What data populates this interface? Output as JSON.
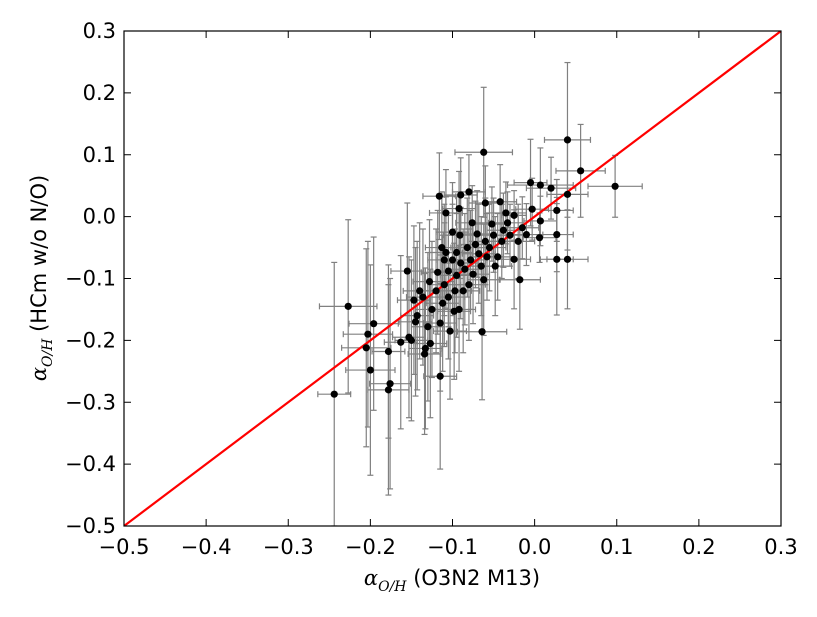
{
  "chart_data": {
    "type": "scatter",
    "xlabel": {
      "math": "α",
      "sub": "O/H",
      "text": " (O3N2 M13)"
    },
    "ylabel": {
      "math": "α",
      "sub": "O/H",
      "text": " (HCm w/o N/O)"
    },
    "xlim": [
      -0.5,
      0.3
    ],
    "ylim": [
      -0.5,
      0.3
    ],
    "xticks": [
      -0.5,
      -0.4,
      -0.3,
      -0.2,
      -0.1,
      0.0,
      0.1,
      0.2,
      0.3
    ],
    "yticks": [
      -0.5,
      -0.4,
      -0.3,
      -0.2,
      -0.1,
      0.0,
      0.1,
      0.2,
      0.3
    ],
    "xtick_labels": [
      "−0.5",
      "−0.4",
      "−0.3",
      "−0.2",
      "−0.1",
      "0.0",
      "0.1",
      "0.2",
      "0.3"
    ],
    "ytick_labels": [
      "−0.5",
      "−0.4",
      "−0.3",
      "−0.2",
      "−0.1",
      "0.0",
      "0.1",
      "0.2",
      "0.3"
    ],
    "grid": false,
    "line": {
      "x": [
        -0.5,
        0.3
      ],
      "y": [
        -0.5,
        0.3
      ],
      "color": "#ff0000"
    },
    "marker_color": "#000000",
    "errorbar_color": "#808080",
    "points": [
      {
        "x": 0.098,
        "y": 0.049,
        "xerr": 0.033,
        "yerr": 0.05
      },
      {
        "x": 0.056,
        "y": 0.074,
        "xerr": 0.03,
        "yerr": 0.075
      },
      {
        "x": 0.04,
        "y": 0.124,
        "xerr": 0.028,
        "yerr": 0.125
      },
      {
        "x": 0.04,
        "y": 0.036,
        "xerr": 0.025,
        "yerr": 0.09
      },
      {
        "x": 0.04,
        "y": -0.069,
        "xerr": 0.025,
        "yerr": 0.08
      },
      {
        "x": 0.027,
        "y": -0.069,
        "xerr": 0.02,
        "yerr": 0.09
      },
      {
        "x": 0.027,
        "y": -0.029,
        "xerr": 0.02,
        "yerr": 0.06
      },
      {
        "x": 0.027,
        "y": 0.01,
        "xerr": 0.02,
        "yerr": 0.05
      },
      {
        "x": 0.02,
        "y": 0.046,
        "xerr": 0.03,
        "yerr": 0.05
      },
      {
        "x": 0.007,
        "y": 0.051,
        "xerr": 0.04,
        "yerr": 0.06
      },
      {
        "x": -0.005,
        "y": 0.055,
        "xerr": 0.02,
        "yerr": 0.07
      },
      {
        "x": 0.007,
        "y": -0.007,
        "xerr": 0.02,
        "yerr": 0.04
      },
      {
        "x": 0.006,
        "y": -0.034,
        "xerr": 0.02,
        "yerr": 0.04
      },
      {
        "x": -0.003,
        "y": 0.012,
        "xerr": 0.02,
        "yerr": 0.05
      },
      {
        "x": -0.01,
        "y": -0.029,
        "xerr": 0.02,
        "yerr": 0.05
      },
      {
        "x": -0.015,
        "y": -0.018,
        "xerr": 0.02,
        "yerr": 0.05
      },
      {
        "x": -0.02,
        "y": -0.04,
        "xerr": 0.02,
        "yerr": 0.06
      },
      {
        "x": -0.018,
        "y": -0.102,
        "xerr": 0.025,
        "yerr": 0.08
      },
      {
        "x": -0.025,
        "y": -0.069,
        "xerr": 0.02,
        "yerr": 0.08
      },
      {
        "x": -0.025,
        "y": 0.002,
        "xerr": 0.015,
        "yerr": 0.04
      },
      {
        "x": -0.03,
        "y": -0.03,
        "xerr": 0.02,
        "yerr": 0.05
      },
      {
        "x": -0.033,
        "y": -0.01,
        "xerr": 0.02,
        "yerr": 0.05
      },
      {
        "x": -0.035,
        "y": 0.006,
        "xerr": 0.025,
        "yerr": 0.05
      },
      {
        "x": -0.038,
        "y": -0.022,
        "xerr": 0.02,
        "yerr": 0.06
      },
      {
        "x": -0.04,
        "y": -0.04,
        "xerr": 0.02,
        "yerr": 0.06
      },
      {
        "x": -0.042,
        "y": 0.024,
        "xerr": 0.02,
        "yerr": 0.06
      },
      {
        "x": -0.045,
        "y": -0.065,
        "xerr": 0.02,
        "yerr": 0.07
      },
      {
        "x": -0.048,
        "y": -0.08,
        "xerr": 0.02,
        "yerr": 0.08
      },
      {
        "x": -0.05,
        "y": -0.03,
        "xerr": 0.02,
        "yerr": 0.06
      },
      {
        "x": -0.052,
        "y": -0.012,
        "xerr": 0.02,
        "yerr": 0.06
      },
      {
        "x": -0.055,
        "y": -0.05,
        "xerr": 0.02,
        "yerr": 0.07
      },
      {
        "x": -0.058,
        "y": -0.065,
        "xerr": 0.02,
        "yerr": 0.07
      },
      {
        "x": -0.06,
        "y": -0.04,
        "xerr": 0.02,
        "yerr": 0.07
      },
      {
        "x": -0.062,
        "y": 0.104,
        "xerr": 0.035,
        "yerr": 0.105
      },
      {
        "x": -0.06,
        "y": 0.022,
        "xerr": 0.02,
        "yerr": 0.06
      },
      {
        "x": -0.062,
        "y": -0.102,
        "xerr": 0.02,
        "yerr": 0.09
      },
      {
        "x": -0.064,
        "y": -0.186,
        "xerr": 0.03,
        "yerr": 0.11
      },
      {
        "x": -0.065,
        "y": -0.08,
        "xerr": 0.02,
        "yerr": 0.08
      },
      {
        "x": -0.068,
        "y": -0.06,
        "xerr": 0.02,
        "yerr": 0.08
      },
      {
        "x": -0.07,
        "y": -0.028,
        "xerr": 0.02,
        "yerr": 0.07
      },
      {
        "x": -0.072,
        "y": -0.045,
        "xerr": 0.02,
        "yerr": 0.07
      },
      {
        "x": -0.075,
        "y": -0.093,
        "xerr": 0.02,
        "yerr": 0.08
      },
      {
        "x": -0.076,
        "y": -0.01,
        "xerr": 0.02,
        "yerr": 0.06
      },
      {
        "x": -0.078,
        "y": -0.07,
        "xerr": 0.02,
        "yerr": 0.08
      },
      {
        "x": -0.08,
        "y": -0.11,
        "xerr": 0.02,
        "yerr": 0.09
      },
      {
        "x": -0.08,
        "y": 0.04,
        "xerr": 0.02,
        "yerr": 0.06
      },
      {
        "x": -0.082,
        "y": -0.05,
        "xerr": 0.02,
        "yerr": 0.08
      },
      {
        "x": -0.085,
        "y": -0.085,
        "xerr": 0.02,
        "yerr": 0.09
      },
      {
        "x": -0.087,
        "y": -0.12,
        "xerr": 0.02,
        "yerr": 0.1
      },
      {
        "x": -0.09,
        "y": -0.075,
        "xerr": 0.02,
        "yerr": 0.09
      },
      {
        "x": -0.09,
        "y": 0.035,
        "xerr": 0.02,
        "yerr": 0.06
      },
      {
        "x": -0.091,
        "y": -0.03,
        "xerr": 0.02,
        "yerr": 0.07
      },
      {
        "x": -0.092,
        "y": -0.15,
        "xerr": 0.02,
        "yerr": 0.1
      },
      {
        "x": -0.092,
        "y": 0.013,
        "xerr": 0.02,
        "yerr": 0.06
      },
      {
        "x": -0.095,
        "y": -0.058,
        "xerr": 0.02,
        "yerr": 0.09
      },
      {
        "x": -0.095,
        "y": -0.095,
        "xerr": 0.02,
        "yerr": 0.1
      },
      {
        "x": -0.097,
        "y": -0.12,
        "xerr": 0.02,
        "yerr": 0.1
      },
      {
        "x": -0.098,
        "y": -0.153,
        "xerr": 0.02,
        "yerr": 0.11
      },
      {
        "x": -0.1,
        "y": -0.07,
        "xerr": 0.02,
        "yerr": 0.09
      },
      {
        "x": -0.1,
        "y": -0.025,
        "xerr": 0.02,
        "yerr": 0.08
      },
      {
        "x": -0.103,
        "y": -0.185,
        "xerr": 0.02,
        "yerr": 0.11
      },
      {
        "x": -0.105,
        "y": -0.088,
        "xerr": 0.02,
        "yerr": 0.09
      },
      {
        "x": -0.105,
        "y": -0.13,
        "xerr": 0.02,
        "yerr": 0.1
      },
      {
        "x": -0.108,
        "y": -0.058,
        "xerr": 0.02,
        "yerr": 0.09
      },
      {
        "x": -0.108,
        "y": 0.006,
        "xerr": 0.02,
        "yerr": 0.07
      },
      {
        "x": -0.11,
        "y": -0.07,
        "xerr": 0.02,
        "yerr": 0.09
      },
      {
        "x": -0.11,
        "y": -0.11,
        "xerr": 0.02,
        "yerr": 0.1
      },
      {
        "x": -0.112,
        "y": -0.14,
        "xerr": 0.02,
        "yerr": 0.11
      },
      {
        "x": -0.113,
        "y": -0.05,
        "xerr": 0.02,
        "yerr": 0.09
      },
      {
        "x": -0.115,
        "y": -0.258,
        "xerr": 0.02,
        "yerr": 0.15
      },
      {
        "x": -0.115,
        "y": -0.172,
        "xerr": 0.02,
        "yerr": 0.11
      },
      {
        "x": -0.116,
        "y": 0.033,
        "xerr": 0.02,
        "yerr": 0.07
      },
      {
        "x": -0.118,
        "y": -0.09,
        "xerr": 0.02,
        "yerr": 0.1
      },
      {
        "x": -0.12,
        "y": -0.12,
        "xerr": 0.02,
        "yerr": 0.1
      },
      {
        "x": -0.125,
        "y": -0.15,
        "xerr": 0.02,
        "yerr": 0.11
      },
      {
        "x": -0.127,
        "y": -0.205,
        "xerr": 0.02,
        "yerr": 0.12
      },
      {
        "x": -0.128,
        "y": -0.105,
        "xerr": 0.02,
        "yerr": 0.1
      },
      {
        "x": -0.13,
        "y": -0.178,
        "xerr": 0.02,
        "yerr": 0.12
      },
      {
        "x": -0.133,
        "y": -0.213,
        "xerr": 0.02,
        "yerr": 0.13
      },
      {
        "x": -0.134,
        "y": -0.222,
        "xerr": 0.02,
        "yerr": 0.13
      },
      {
        "x": -0.136,
        "y": -0.13,
        "xerr": 0.02,
        "yerr": 0.11
      },
      {
        "x": -0.14,
        "y": -0.12,
        "xerr": 0.02,
        "yerr": 0.11
      },
      {
        "x": -0.143,
        "y": -0.16,
        "xerr": 0.02,
        "yerr": 0.12
      },
      {
        "x": -0.145,
        "y": -0.17,
        "xerr": 0.02,
        "yerr": 0.12
      },
      {
        "x": -0.147,
        "y": -0.135,
        "xerr": 0.02,
        "yerr": 0.12
      },
      {
        "x": -0.15,
        "y": -0.2,
        "xerr": 0.02,
        "yerr": 0.13
      },
      {
        "x": -0.153,
        "y": -0.195,
        "xerr": 0.02,
        "yerr": 0.13
      },
      {
        "x": -0.155,
        "y": -0.088,
        "xerr": 0.02,
        "yerr": 0.11
      },
      {
        "x": -0.163,
        "y": -0.203,
        "xerr": 0.02,
        "yerr": 0.14
      },
      {
        "x": -0.178,
        "y": -0.218,
        "xerr": 0.02,
        "yerr": 0.14
      },
      {
        "x": -0.178,
        "y": -0.28,
        "xerr": 0.025,
        "yerr": 0.17
      },
      {
        "x": -0.176,
        "y": -0.27,
        "xerr": 0.025,
        "yerr": 0.17
      },
      {
        "x": -0.196,
        "y": -0.173,
        "xerr": 0.03,
        "yerr": 0.14
      },
      {
        "x": -0.2,
        "y": -0.248,
        "xerr": 0.03,
        "yerr": 0.17
      },
      {
        "x": -0.203,
        "y": -0.19,
        "xerr": 0.03,
        "yerr": 0.15
      },
      {
        "x": -0.205,
        "y": -0.212,
        "xerr": 0.03,
        "yerr": 0.16
      },
      {
        "x": -0.227,
        "y": -0.145,
        "xerr": 0.035,
        "yerr": 0.14
      },
      {
        "x": -0.244,
        "y": -0.287,
        "xerr": 0.02,
        "yerr": 0.213
      }
    ]
  }
}
